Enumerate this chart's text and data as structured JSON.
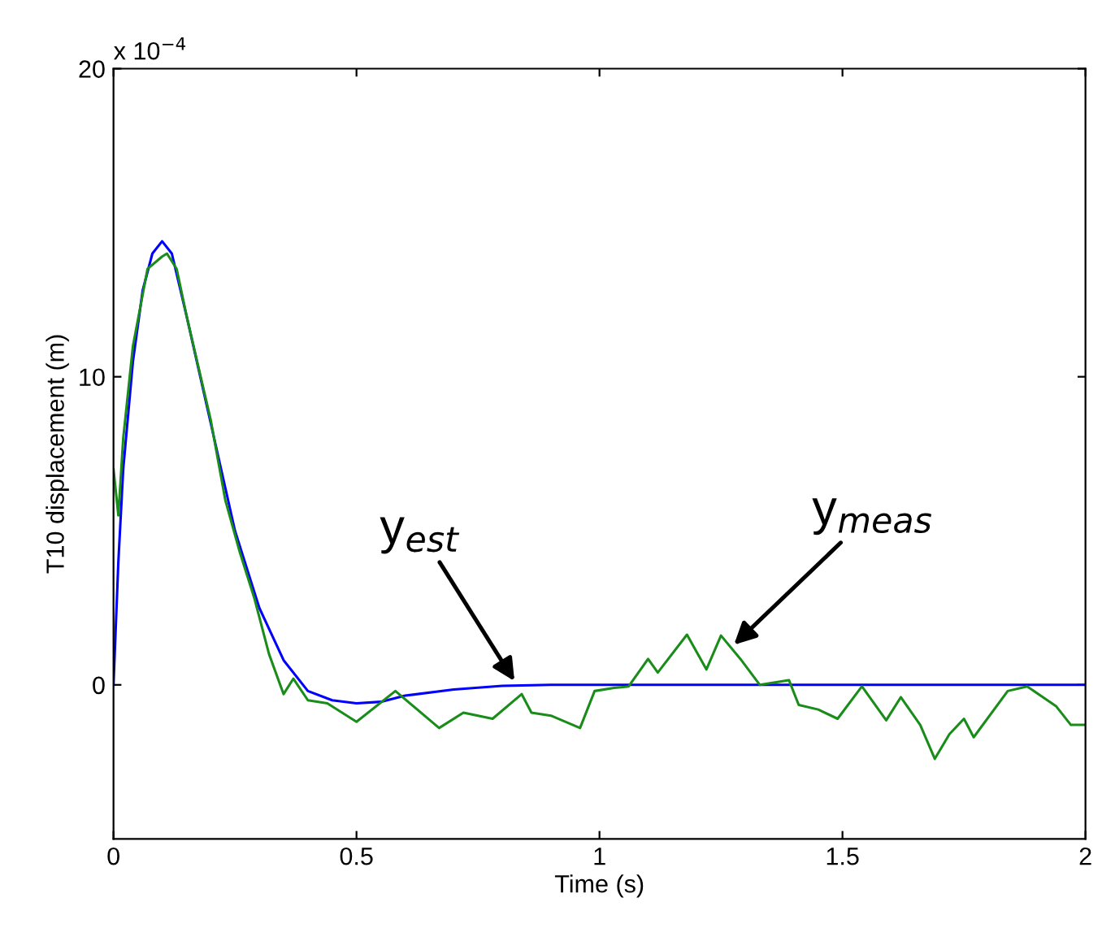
{
  "chart_data": {
    "type": "line",
    "xlabel": "Time (s)",
    "ylabel": "T10 displacement (m)",
    "xlim": [
      0,
      2
    ],
    "ylim": [
      -5,
      20
    ],
    "xticks": [
      0,
      0.5,
      1,
      1.5,
      2
    ],
    "yticks": [
      0,
      10,
      20
    ],
    "grid": false,
    "legend": false,
    "marker": "none",
    "line_style": "solid",
    "annotations": [
      "x 10$^{−4}$",
      {
        "text": "y$_{est}$",
        "x": 0.83,
        "y": 0
      },
      {
        "text": "y$_{meas}$",
        "x": 1.27,
        "y": 1.2
      }
    ],
    "series": [
      {
        "color": "#0000ff",
        "x": [
          0,
          0.01,
          0.02,
          0.04,
          0.06,
          0.08,
          0.1,
          0.12,
          0.15,
          0.2,
          0.25,
          0.3,
          0.35,
          0.4,
          0.45,
          0.5,
          0.55,
          0.6,
          0.7,
          0.8,
          0.9,
          1.0,
          2.0
        ],
        "values": [
          0,
          4,
          7,
          10.5,
          12.8,
          14,
          14.4,
          14,
          12,
          8.5,
          5,
          2.5,
          0.8,
          -0.2,
          -0.5,
          -0.6,
          -0.55,
          -0.35,
          -0.15,
          -0.03,
          0,
          0,
          0
        ]
      },
      {
        "color": "#1a8c1a",
        "x": [
          0,
          0.01,
          0.02,
          0.04,
          0.07,
          0.1,
          0.11,
          0.13,
          0.15,
          0.2,
          0.23,
          0.26,
          0.29,
          0.32,
          0.35,
          0.37,
          0.4,
          0.44,
          0.5,
          0.58,
          0.67,
          0.72,
          0.78,
          0.84,
          0.86,
          0.9,
          0.96,
          0.99,
          1.03,
          1.06,
          1.1,
          1.12,
          1.18,
          1.22,
          1.25,
          1.29,
          1.33,
          1.39,
          1.41,
          1.45,
          1.49,
          1.54,
          1.59,
          1.62,
          1.66,
          1.69,
          1.72,
          1.75,
          1.77,
          1.84,
          1.88,
          1.94,
          1.97,
          2.0
        ],
        "values": [
          7,
          5.5,
          8,
          11,
          13.5,
          13.9,
          14,
          13.5,
          12,
          8.6,
          6,
          4.3,
          2.8,
          1,
          -0.3,
          0.2,
          -0.5,
          -0.6,
          -1.2,
          -0.2,
          -1.4,
          -0.9,
          -1.1,
          -0.3,
          -0.9,
          -1.0,
          -1.4,
          -0.2,
          -0.1,
          -0.05,
          0.84,
          0.4,
          1.63,
          0.5,
          1.6,
          0.84,
          0,
          0.15,
          -0.65,
          -0.8,
          -1.1,
          -0.05,
          -1.15,
          -0.4,
          -1.3,
          -2.4,
          -1.6,
          -1.1,
          -1.7,
          -0.2,
          -0.05,
          -0.7,
          -1.3,
          -1.3
        ]
      }
    ]
  }
}
